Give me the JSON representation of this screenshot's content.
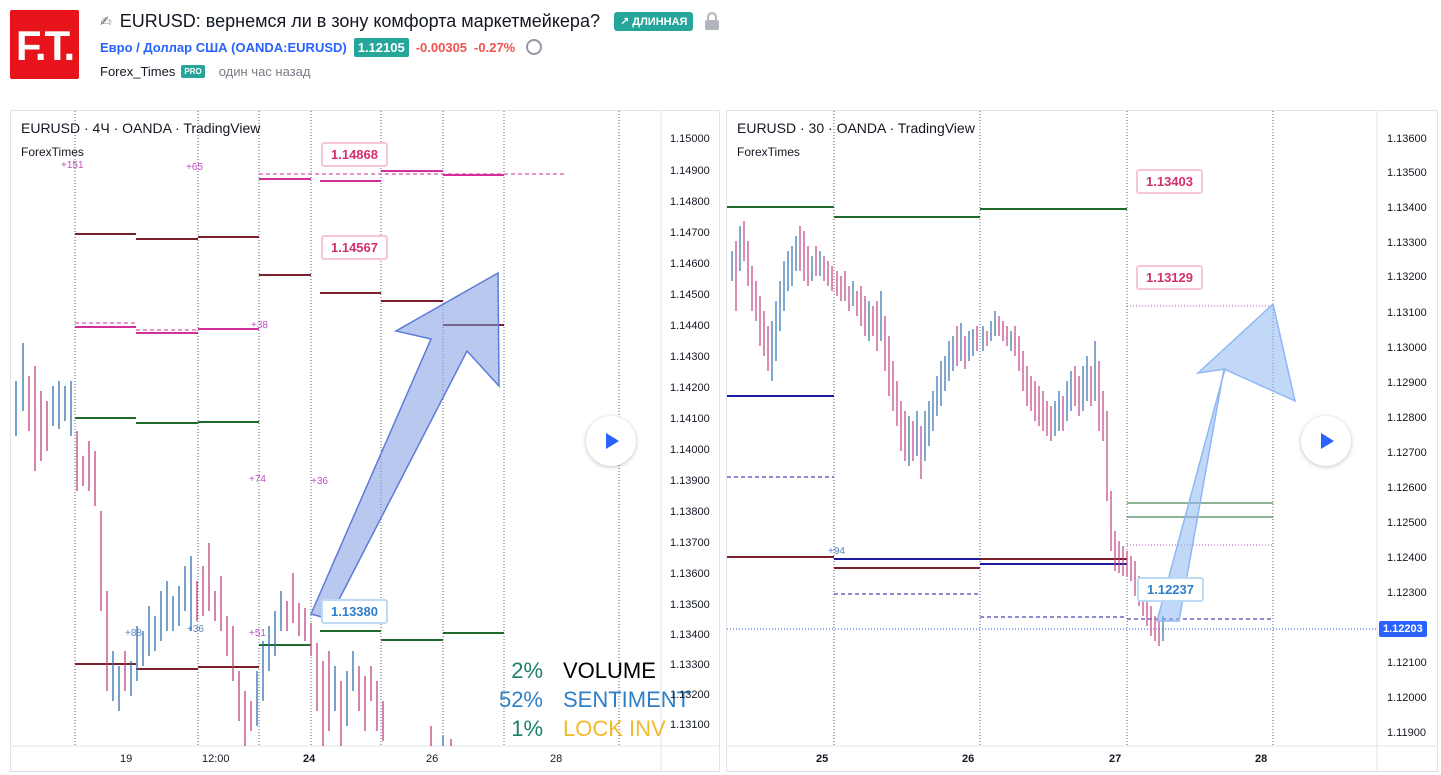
{
  "header": {
    "logo_text": "F.T.",
    "title": "EURUSD: вернемся ли в зону комфорта маркетмейкера?",
    "direction_badge": "↗ ДЛИННАЯ",
    "symbol_link": "Евро / Доллар США (OANDA:EURUSD)",
    "last_price": "1.12105",
    "change_abs": "-0.00305",
    "change_pct": "-0.27%",
    "author": "Forex_Times",
    "pro_badge": "PRO",
    "published": "один час назад"
  },
  "left_chart": {
    "legend": "EURUSD · 4Ч · OANDA · TradingView",
    "sublegend": "ForexTimes",
    "price_axis": [
      "1.15000",
      "1.14900",
      "1.14800",
      "1.14700",
      "1.14600",
      "1.14500",
      "1.14400",
      "1.14300",
      "1.14200",
      "1.14100",
      "1.14000",
      "1.13900",
      "1.13800",
      "1.13700",
      "1.13600",
      "1.13500",
      "1.13400",
      "1.13300",
      "1.13200",
      "1.13100"
    ],
    "time_axis": [
      "19",
      "12:00",
      "24",
      "26",
      "28"
    ],
    "callouts": [
      "1.14868",
      "1.14567",
      "1.13380"
    ],
    "small_labels": [
      "+151",
      "+65",
      "+38",
      "+74",
      "+36",
      "+88",
      "+36",
      "+51"
    ],
    "stats": [
      {
        "pct": "2%",
        "label": "VOLUME"
      },
      {
        "pct": "52%",
        "label": "SENTIMENT"
      },
      {
        "pct": "1%",
        "label": "LOCK INV"
      }
    ]
  },
  "right_chart": {
    "legend": "EURUSD · 30 · OANDA · TradingView",
    "sublegend": "ForexTimes",
    "price_axis": [
      "1.13600",
      "1.13500",
      "1.13400",
      "1.13300",
      "1.13200",
      "1.13100",
      "1.13000",
      "1.12900",
      "1.12800",
      "1.12700",
      "1.12600",
      "1.12500",
      "1.12400",
      "1.12300",
      "1.12200",
      "1.12100",
      "1.12000",
      "1.11900"
    ],
    "current_price": "1.12203",
    "time_axis": [
      "25",
      "26",
      "27",
      "28"
    ],
    "callouts": [
      "1.13403",
      "1.13129",
      "1.12237"
    ],
    "small_labels": [
      "+94"
    ]
  },
  "colors": {
    "brand_red": "#e8141b",
    "long_green": "#26a69a",
    "candle_up": "#2f6fb0",
    "candle_down": "#c2407e",
    "arrow_fill": "#7d9be0"
  }
}
